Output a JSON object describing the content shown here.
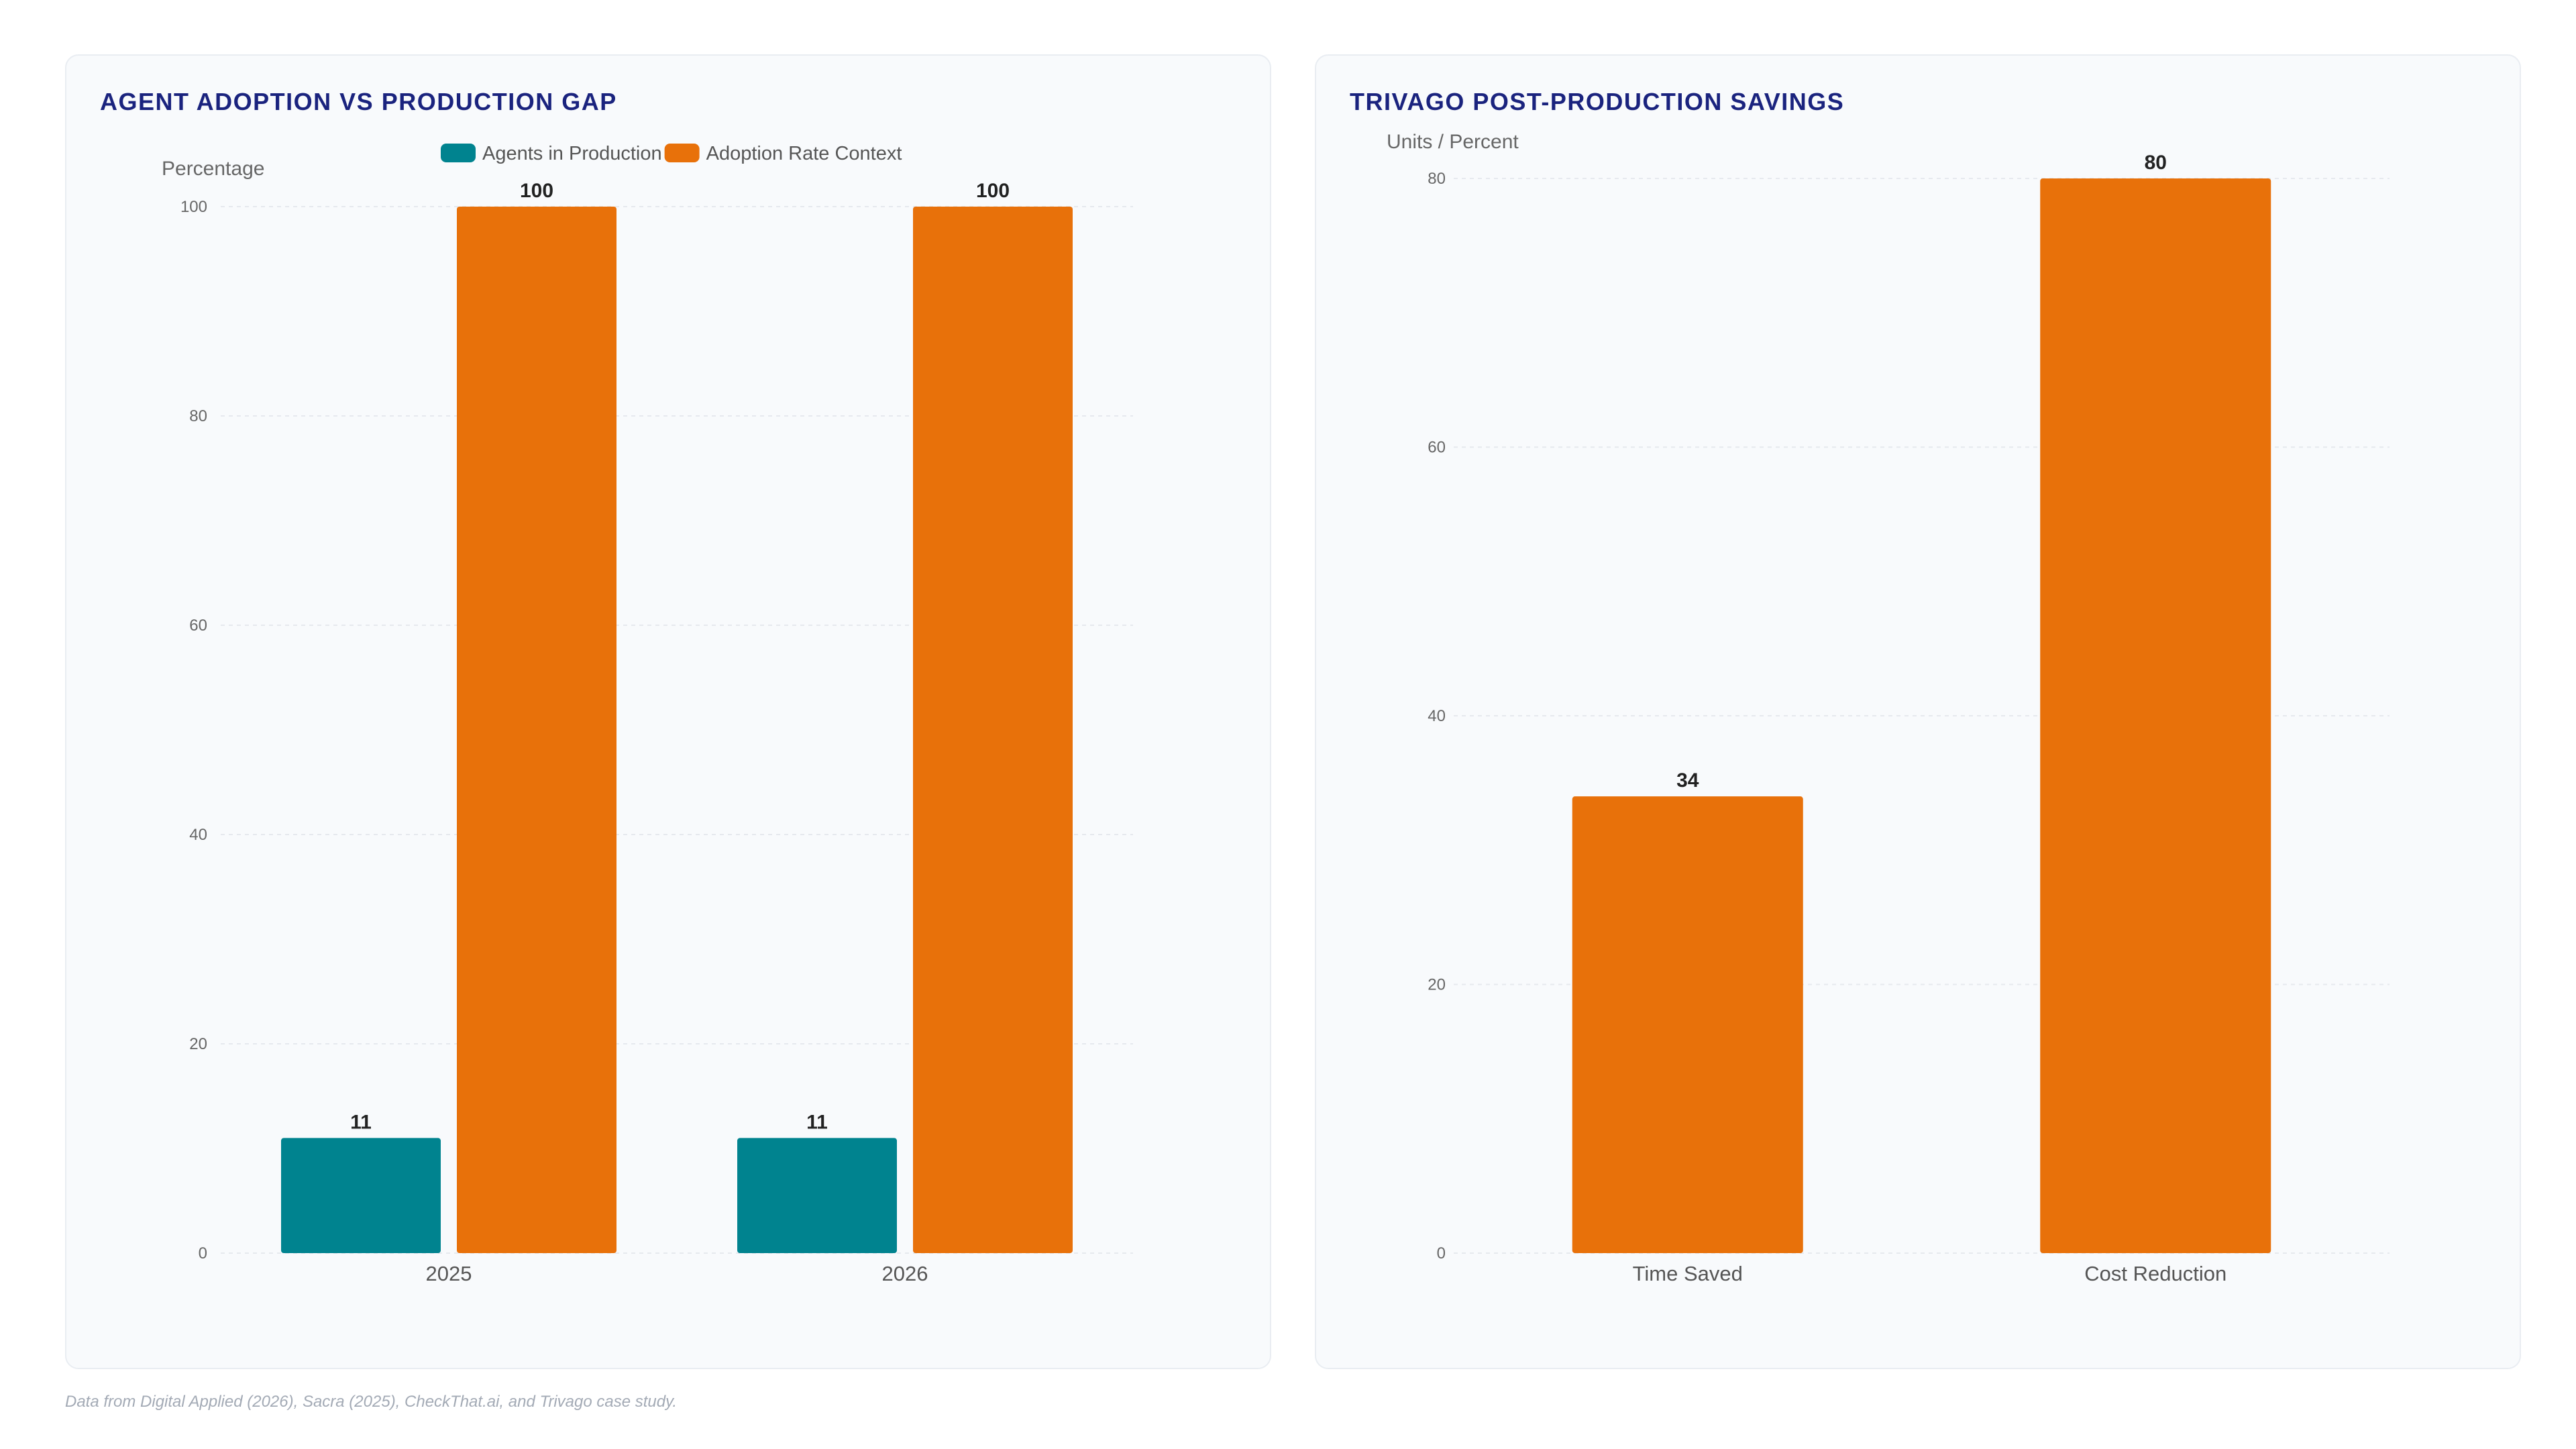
{
  "charts": [
    {
      "title": "AGENT ADOPTION VS PRODUCTION GAP",
      "ylabel": "Percentage"
    },
    {
      "title": "TRIVAGO POST-PRODUCTION SAVINGS",
      "ylabel": "Units / Percent"
    }
  ],
  "footnote": "Data from Digital Applied (2026), Sacra (2025), CheckThat.ai, and Trivago case study.",
  "chart_data": [
    {
      "type": "bar",
      "title": "AGENT ADOPTION VS PRODUCTION GAP",
      "ylabel": "Percentage",
      "xlabel": "",
      "categories": [
        "2025",
        "2026"
      ],
      "series": [
        {
          "name": "Agents in Production",
          "values": [
            11,
            11
          ],
          "color": "#00838f"
        },
        {
          "name": "Adoption Rate Context",
          "values": [
            100,
            100
          ],
          "color": "#e8710a"
        }
      ],
      "ylim": [
        0,
        100
      ],
      "yticks": [
        0,
        20,
        40,
        60,
        80,
        100
      ],
      "legend": "top-center",
      "grid": true
    },
    {
      "type": "bar",
      "title": "TRIVAGO POST-PRODUCTION SAVINGS",
      "ylabel": "Units / Percent",
      "xlabel": "",
      "categories": [
        "Time Saved",
        "Cost Reduction"
      ],
      "series": [
        {
          "values": [
            34,
            80
          ],
          "color": "#e8710a"
        }
      ],
      "ylim": [
        0,
        80
      ],
      "yticks": [
        0,
        20,
        40,
        60,
        80
      ],
      "legend": "none",
      "grid": true
    }
  ]
}
